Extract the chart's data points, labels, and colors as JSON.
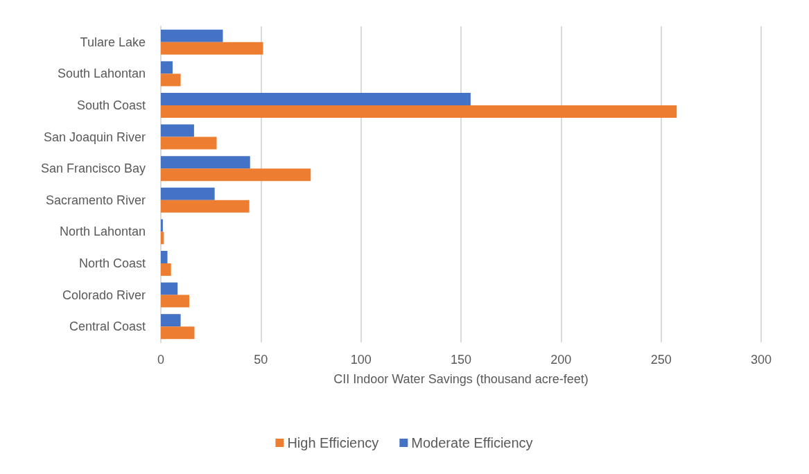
{
  "chart_data": {
    "type": "bar",
    "orientation": "horizontal",
    "xlabel": "CII Indoor Water Savings (thousand acre-feet)",
    "categories": [
      "Tulare Lake",
      "South Lahontan",
      "South Coast",
      "San Joaquin River",
      "San Francisco Bay",
      "Sacramento River",
      "North Lahontan",
      "North Coast",
      "Colorado River",
      "Central Coast"
    ],
    "series": [
      {
        "name": "High Efficiency",
        "color": "#ed7d31",
        "values": [
          51.1,
          9.9,
          257.8,
          27.9,
          74.9,
          44.2,
          1.5,
          5.1,
          14.2,
          16.8
        ]
      },
      {
        "name": "Moderate Efficiency",
        "color": "#4472c4",
        "values": [
          31,
          5.9,
          154.8,
          16.6,
          44.6,
          26.9,
          1.0,
          3.3,
          8.4,
          9.9
        ]
      }
    ],
    "xlim": [
      0,
      300
    ],
    "xticks": [
      0,
      50,
      100,
      150,
      200,
      250,
      300
    ],
    "grid": "x",
    "legend": "bottom"
  }
}
